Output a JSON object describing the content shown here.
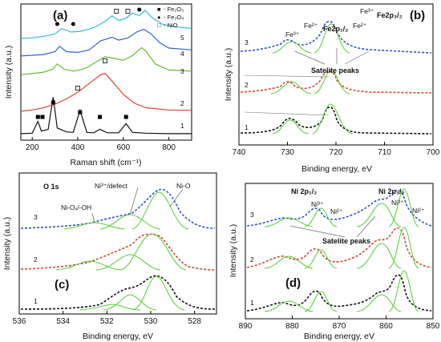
{
  "chart_data": [
    {
      "type": "line",
      "panel": "(a)",
      "xlabel": "Raman shift (cm⁻¹)",
      "ylabel": "Intensity (a.u.)",
      "xlim": [
        150,
        900
      ],
      "xticks": [
        200,
        400,
        600,
        800
      ],
      "yticks_shown": false,
      "grid": false,
      "legend": {
        "placement": "top-right",
        "entries": [
          {
            "marker": "■",
            "label": "- Fe₂O₃"
          },
          {
            "marker": "●",
            "label": "- Fe₃O₄"
          },
          {
            "marker": "□",
            "label": "- NiO"
          }
        ]
      },
      "series": [
        {
          "name": "1",
          "color": "#111111",
          "x": [
            150,
            200,
            225,
            240,
            270,
            292,
            310,
            350,
            380,
            410,
            440,
            470,
            497,
            530,
            580,
            612,
            640,
            700,
            800,
            900
          ],
          "y": [
            0.02,
            0.03,
            0.3,
            0.08,
            0.12,
            0.85,
            0.15,
            0.06,
            0.05,
            0.55,
            0.05,
            0.04,
            0.12,
            0.04,
            0.04,
            0.25,
            0.05,
            0.03,
            0.02,
            0.02
          ]
        },
        {
          "name": "2",
          "color": "#d9453a",
          "x": [
            150,
            200,
            250,
            300,
            350,
            400,
            450,
            500,
            520,
            560,
            600,
            650,
            700,
            800,
            900
          ],
          "y": [
            0.02,
            0.05,
            0.1,
            0.18,
            0.3,
            0.45,
            0.65,
            0.85,
            0.88,
            0.65,
            0.4,
            0.2,
            0.1,
            0.05,
            0.04
          ]
        },
        {
          "name": "3",
          "color": "#66bb33",
          "x": [
            150,
            200,
            250,
            290,
            310,
            340,
            380,
            420,
            450,
            480,
            520,
            560,
            600,
            640,
            680,
            700,
            740,
            800,
            900
          ],
          "y": [
            0.15,
            0.18,
            0.22,
            0.3,
            0.45,
            0.3,
            0.25,
            0.3,
            0.38,
            0.5,
            0.65,
            0.6,
            0.55,
            0.68,
            0.9,
            0.8,
            0.45,
            0.28,
            0.25
          ]
        },
        {
          "name": "4",
          "color": "#3366cc",
          "x": [
            150,
            200,
            250,
            300,
            320,
            350,
            400,
            450,
            500,
            550,
            580,
            620,
            660,
            690,
            720,
            760,
            800,
            900
          ],
          "y": [
            0.18,
            0.2,
            0.22,
            0.3,
            0.45,
            0.3,
            0.28,
            0.35,
            0.6,
            0.7,
            0.62,
            0.68,
            0.85,
            0.92,
            0.8,
            0.55,
            0.4,
            0.35
          ]
        },
        {
          "name": "5",
          "color": "#33bbdd",
          "x": [
            150,
            200,
            250,
            300,
            330,
            370,
            410,
            450,
            480,
            520,
            550,
            580,
            610,
            640,
            670,
            695,
            730,
            770,
            820,
            900
          ],
          "y": [
            0.22,
            0.24,
            0.28,
            0.35,
            0.5,
            0.4,
            0.42,
            0.48,
            0.55,
            0.7,
            0.85,
            0.72,
            0.78,
            0.92,
            0.86,
            1.0,
            0.78,
            0.62,
            0.55,
            0.5
          ]
        }
      ],
      "marker_points": {
        "fe2o3": [
          [
            225,
            1
          ],
          [
            245,
            1
          ],
          [
            292,
            1
          ],
          [
            410,
            1
          ],
          [
            497,
            1
          ],
          [
            612,
            1
          ]
        ],
        "fe3o4": [
          [
            310,
            5
          ],
          [
            670,
            5
          ],
          [
            380,
            5
          ]
        ],
        "nio": [
          [
            400,
            2
          ],
          [
            520,
            3
          ],
          [
            570,
            5
          ],
          [
            620,
            5
          ]
        ]
      }
    },
    {
      "type": "line",
      "panel": "(b)",
      "xlabel": "Binding energy, eV",
      "ylabel": "Intensity (a.u.)",
      "xlim": [
        740,
        700
      ],
      "xticks": [
        740,
        730,
        720,
        710,
        700
      ],
      "yticks_shown": false,
      "grid": false,
      "stack_labels": [
        "1",
        "2",
        "3"
      ],
      "annotations": [
        "Fe³⁺",
        "Fe²⁺",
        "Fe2p₁/₂",
        "Fe³⁺",
        "Fe²⁺",
        "Fe2p₃/₂",
        "Satelite peaks"
      ]
    },
    {
      "type": "line",
      "panel": "(c)",
      "xlabel": "Binding energy, eV",
      "ylabel": "Intensity (a.u.)",
      "xlim": [
        536,
        527
      ],
      "xticks": [
        536,
        534,
        532,
        530,
        528
      ],
      "yticks_shown": false,
      "grid": false,
      "stack_labels": [
        "1",
        "2",
        "3"
      ],
      "annotations": [
        "O 1s",
        "Ni³⁺/defect",
        "Ni-O",
        "Ni-Oₓ/-OH"
      ]
    },
    {
      "type": "line",
      "panel": "(d)",
      "xlabel": "Binding energy, eV",
      "ylabel": "Intensity (a.u.)",
      "xlim": [
        890,
        850
      ],
      "xticks": [
        890,
        880,
        870,
        860,
        850
      ],
      "yticks_shown": false,
      "grid": false,
      "stack_labels": [
        "1",
        "2",
        "3"
      ],
      "annotations": [
        "Ni 2p₁/₂",
        "Ni 2p₃/₂",
        "Ni³⁺",
        "Ni²⁺",
        "Ni³⁺",
        "Ni²⁺",
        "Satelite peaks"
      ]
    }
  ]
}
